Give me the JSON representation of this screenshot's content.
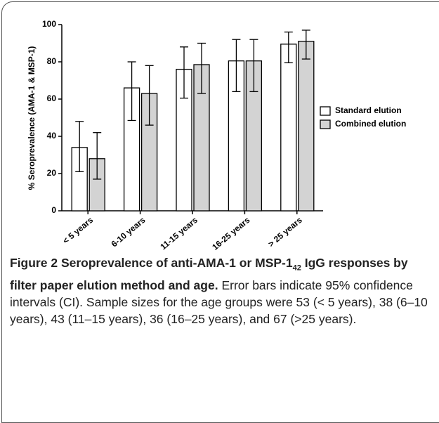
{
  "chart_data": {
    "type": "bar",
    "ylabel": "% Seroprevalence (AMA-1 & MSP-1)",
    "categories": [
      "< 5 years",
      "6-10 years",
      "11-15 years",
      "16-25 years",
      "> 25 years"
    ],
    "series": [
      {
        "name": "Standard elution",
        "color": "#ffffff",
        "values": [
          34,
          66,
          76,
          80.5,
          89.5
        ],
        "err_low": [
          21,
          48.5,
          60.5,
          64,
          79.5
        ],
        "err_high": [
          48,
          80,
          88,
          92,
          96
        ]
      },
      {
        "name": "Combined elution",
        "color": "#d3d3d3",
        "values": [
          28,
          63,
          78.5,
          80.5,
          91
        ],
        "err_low": [
          17,
          46,
          63,
          64,
          81.5
        ],
        "err_high": [
          42,
          78,
          90,
          92,
          97
        ]
      }
    ],
    "ylim": [
      0,
      100
    ],
    "yticks": [
      0,
      20,
      40,
      60,
      80,
      100
    ],
    "legend": "right"
  },
  "caption": {
    "label": "Figure 2",
    "title_start": "Seroprevalence of anti-AMA-1 or MSP-1",
    "title_sub": "42",
    "title_end": "IgG responses by filter paper elution method and age.",
    "text": "Error bars indicate 95% confidence intervals (CI). Sample sizes for the age groups were 53 (< 5 years), 38 (6–10 years), 43 (11–15 years), 36 (16–25 years), and 67 (>25 years)."
  }
}
